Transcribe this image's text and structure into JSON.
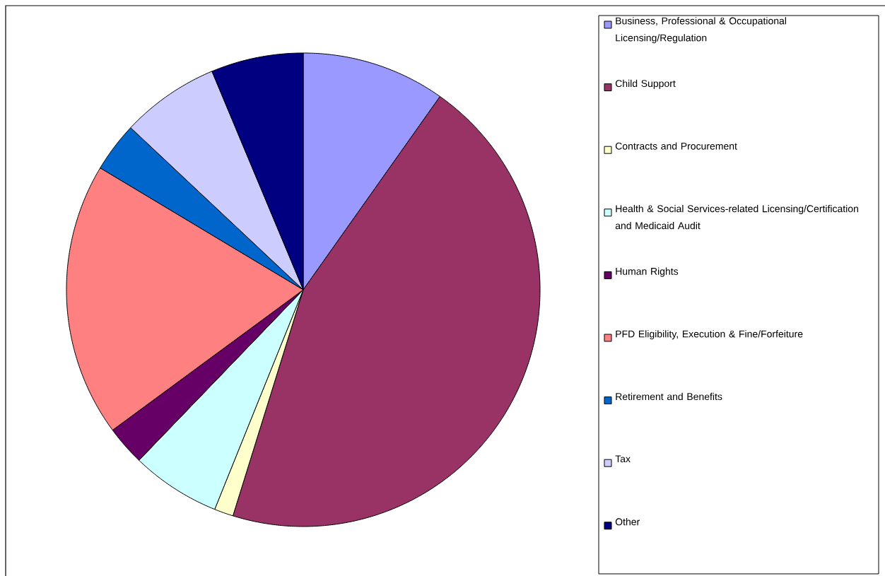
{
  "chart_data": {
    "type": "pie",
    "categories": [
      "Business, Professional & Occupational Licensing/Regulation",
      "Child Support",
      "Contracts and Procurement",
      "Health & Social Services-related Licensing/Certification and Medicaid Audit",
      "Human Rights",
      "PFD Eligibility, Execution & Fine/Forfeiture",
      "Retirement and Benefits",
      "Tax",
      "Other"
    ],
    "values": [
      9.8,
      45.0,
      1.3,
      6.1,
      2.7,
      18.7,
      3.4,
      6.7,
      6.3
    ],
    "colors": [
      "#9999ff",
      "#993366",
      "#ffffcc",
      "#ccffff",
      "#660066",
      "#ff8080",
      "#0066cc",
      "#ccccff",
      "#000080"
    ],
    "legend": "right"
  }
}
